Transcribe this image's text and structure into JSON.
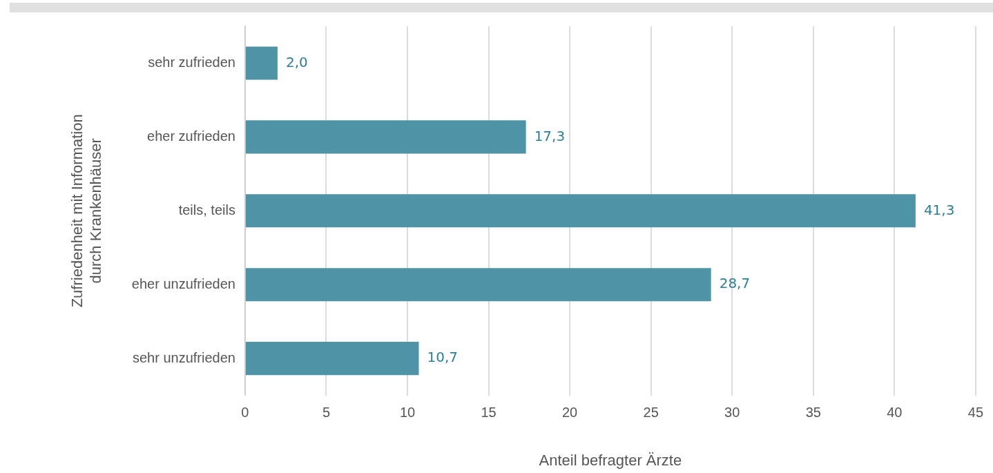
{
  "chart_data": {
    "type": "bar",
    "orientation": "horizontal",
    "xlabel": "Anteil befragter Ärzte",
    "ylabel": "Zufriedenheit mit Information durch Krankenhäuser",
    "categories": [
      "sehr zufrieden",
      "eher zufrieden",
      "teils, teils",
      "eher unzufrieden",
      "sehr unzufrieden"
    ],
    "values": [
      2.0,
      17.3,
      41.3,
      28.7,
      10.7
    ],
    "value_labels": [
      "2,0",
      "17,3",
      "41,3",
      "28,7",
      "10,7"
    ],
    "color": "#4e93a6",
    "xlim": [
      0,
      45
    ],
    "xticks": [
      0,
      5,
      10,
      15,
      20,
      25,
      30,
      35,
      40,
      45
    ],
    "grid": "x",
    "legend": false
  }
}
